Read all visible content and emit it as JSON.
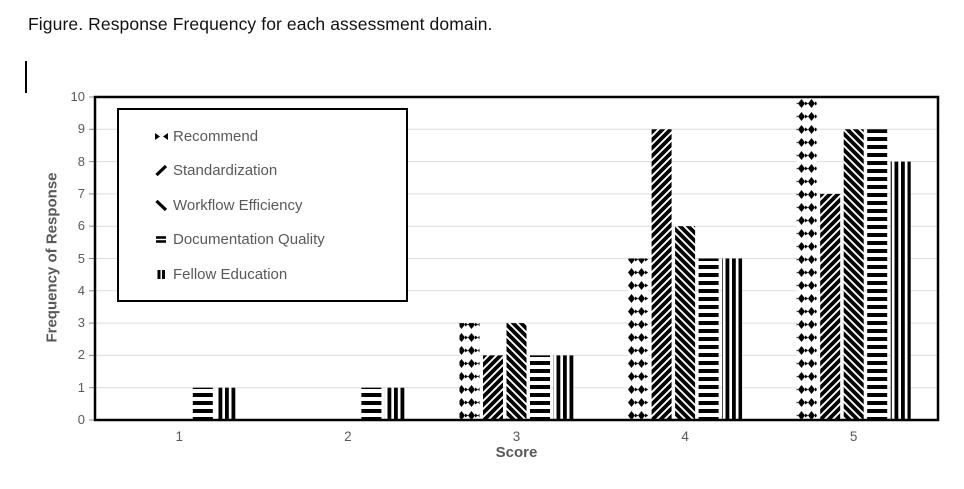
{
  "page": {
    "title": "Figure. Response Frequency for each assessment domain."
  },
  "chart_data": {
    "type": "bar",
    "title": "Response Frequency for each assessment domain",
    "xlabel": "Score",
    "ylabel": "Frequency of Response",
    "categories": [
      "1",
      "2",
      "3",
      "4",
      "5"
    ],
    "series": [
      {
        "name": "Recommend",
        "pattern": "diamond",
        "values": [
          0,
          0,
          3,
          5,
          10
        ]
      },
      {
        "name": "Standardization",
        "pattern": "diagonal-up",
        "values": [
          0,
          0,
          2,
          9,
          7
        ]
      },
      {
        "name": "Workflow Efficiency",
        "pattern": "diagonal-down",
        "values": [
          0,
          0,
          3,
          6,
          9
        ]
      },
      {
        "name": "Documentation Quality",
        "pattern": "horizontal-lines",
        "values": [
          1,
          1,
          2,
          5,
          9
        ]
      },
      {
        "name": "Fellow Education",
        "pattern": "vertical-lines",
        "values": [
          1,
          1,
          2,
          5,
          8
        ]
      }
    ],
    "ylim": [
      0,
      10
    ],
    "yticks": [
      0,
      1,
      2,
      3,
      4,
      5,
      6,
      7,
      8,
      9,
      10
    ],
    "grid": true,
    "legend_position": "upper-left-inside",
    "colors": {
      "bar": "#000000",
      "grid": "#dcdcdc",
      "axis_text": "#595959",
      "plot_border": "#000000",
      "background": "#ffffff"
    }
  }
}
